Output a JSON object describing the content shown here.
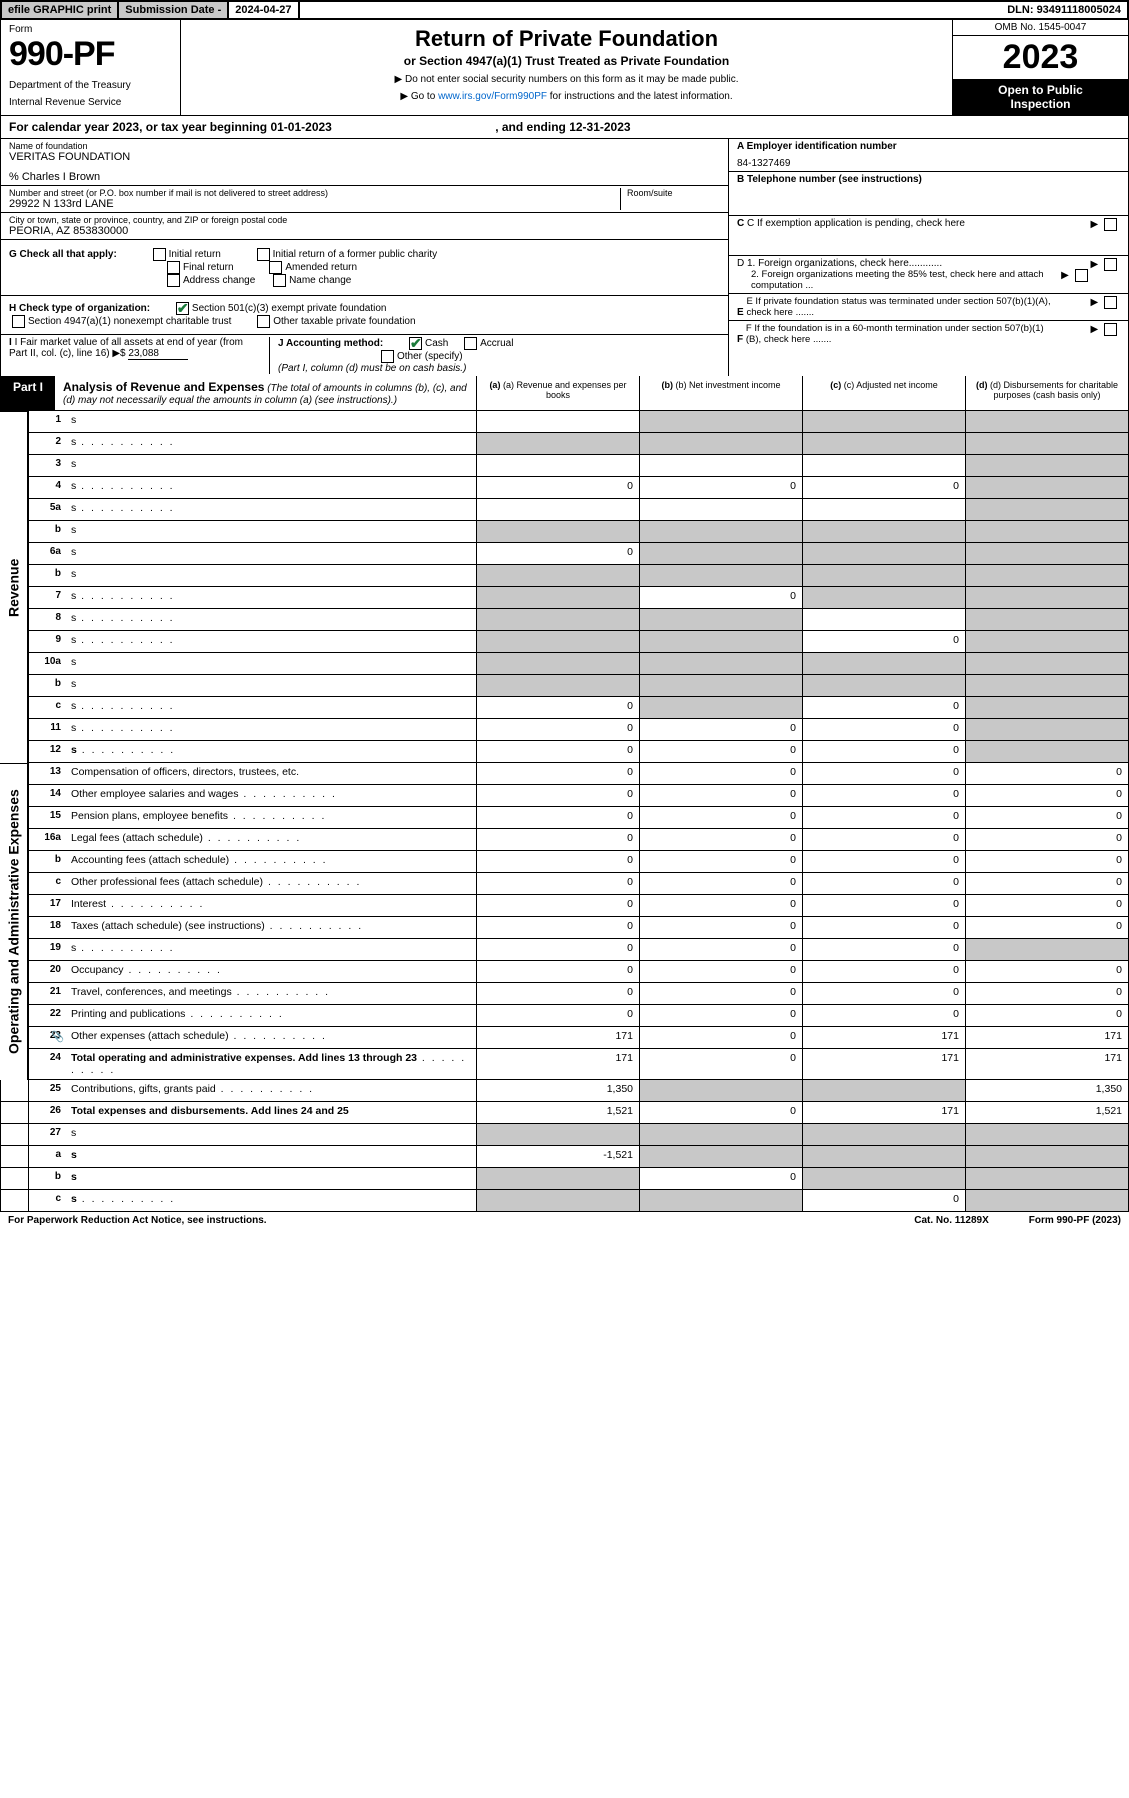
{
  "top": {
    "efile": "efile GRAPHIC print",
    "subdate_lbl": "Submission Date - ",
    "subdate_val": "2024-04-27",
    "dln_lbl": "DLN: ",
    "dln_val": "93491118005024"
  },
  "header": {
    "form_word": "Form",
    "form_num": "990-PF",
    "dept1": "Department of the Treasury",
    "dept2": "Internal Revenue Service",
    "title": "Return of Private Foundation",
    "subtitle": "or Section 4947(a)(1) Trust Treated as Private Foundation",
    "instr1": "▶ Do not enter social security numbers on this form as it may be made public.",
    "instr2_pre": "▶ Go to ",
    "instr2_link": "www.irs.gov/Form990PF",
    "instr2_post": " for instructions and the latest information.",
    "omb": "OMB No. 1545-0047",
    "year": "2023",
    "open_pub1": "Open to Public",
    "open_pub2": "Inspection"
  },
  "cal_year": {
    "pre": "For calendar year 2023, or tax year beginning ",
    "begin": "01-01-2023",
    "mid": " , and ending ",
    "end": "12-31-2023"
  },
  "info": {
    "name_lbl": "Name of foundation",
    "name_val": "VERITAS FOUNDATION",
    "care_of": "% Charles I Brown",
    "addr_lbl": "Number and street (or P.O. box number if mail is not delivered to street address)",
    "addr_val": "29922 N 133rd LANE",
    "room_lbl": "Room/suite",
    "city_lbl": "City or town, state or province, country, and ZIP or foreign postal code",
    "city_val": "PEORIA, AZ  853830000",
    "a_lbl": "A Employer identification number",
    "a_val": "84-1327469",
    "b_lbl": "B Telephone number (see instructions)",
    "c_lbl": "C If exemption application is pending, check here",
    "g_lbl": "G Check all that apply:",
    "g_opts": [
      "Initial return",
      "Initial return of a former public charity",
      "Final return",
      "Amended return",
      "Address change",
      "Name change"
    ],
    "d1_lbl": "D 1. Foreign organizations, check here............",
    "d2_lbl": "2. Foreign organizations meeting the 85% test, check here and attach computation ...",
    "h_lbl": "H Check type of organization:",
    "h_opt1": "Section 501(c)(3) exempt private foundation",
    "h_opt2": "Section 4947(a)(1) nonexempt charitable trust",
    "h_opt3": "Other taxable private foundation",
    "e_lbl": "E If private foundation status was terminated under section 507(b)(1)(A), check here .......",
    "i_lbl": "I Fair market value of all assets at end of year (from Part II, col. (c), line 16) ▶$ ",
    "i_val": "23,088",
    "j_lbl": "J Accounting method:",
    "j_cash": "Cash",
    "j_accrual": "Accrual",
    "j_other": "Other (specify)",
    "j_note": "(Part I, column (d) must be on cash basis.)",
    "f_lbl": "F If the foundation is in a 60-month termination under section 507(b)(1)(B), check here ......."
  },
  "part1": {
    "badge": "Part I",
    "title": "Analysis of Revenue and Expenses",
    "subtitle": " (The total of amounts in columns (b), (c), and (d) may not necessarily equal the amounts in column (a) (see instructions).)",
    "col_a": "(a) Revenue and expenses per books",
    "col_b": "(b) Net investment income",
    "col_c": "(c) Adjusted net income",
    "col_d": "(d) Disbursements for charitable purposes (cash basis only)",
    "side_rev": "Revenue",
    "side_exp": "Operating and Administrative Expenses"
  },
  "rows": [
    {
      "n": "1",
      "d": "s",
      "a": "",
      "b": "s",
      "c": "s"
    },
    {
      "n": "2",
      "d": "s",
      "dots": true,
      "a": "s",
      "b": "s",
      "c": "s"
    },
    {
      "n": "3",
      "d": "s",
      "a": "",
      "b": "",
      "c": ""
    },
    {
      "n": "4",
      "d": "s",
      "dots": true,
      "a": "0",
      "b": "0",
      "c": "0"
    },
    {
      "n": "5a",
      "d": "s",
      "dots": true,
      "a": "",
      "b": "",
      "c": ""
    },
    {
      "n": "b",
      "d": "s",
      "a": "s",
      "b": "s",
      "c": "s"
    },
    {
      "n": "6a",
      "d": "s",
      "a": "0",
      "b": "s",
      "c": "s"
    },
    {
      "n": "b",
      "d": "s",
      "a": "s",
      "b": "s",
      "c": "s"
    },
    {
      "n": "7",
      "d": "s",
      "dots": true,
      "a": "s",
      "b": "0",
      "c": "s"
    },
    {
      "n": "8",
      "d": "s",
      "dots": true,
      "a": "s",
      "b": "s",
      "c": ""
    },
    {
      "n": "9",
      "d": "s",
      "dots": true,
      "a": "s",
      "b": "s",
      "c": "0"
    },
    {
      "n": "10a",
      "d": "s",
      "a": "s",
      "b": "s",
      "c": "s"
    },
    {
      "n": "b",
      "d": "s",
      "a": "s",
      "b": "s",
      "c": "s"
    },
    {
      "n": "c",
      "d": "s",
      "dots": true,
      "a": "0",
      "b": "s",
      "c": "0"
    },
    {
      "n": "11",
      "d": "s",
      "dots": true,
      "a": "0",
      "b": "0",
      "c": "0"
    },
    {
      "n": "12",
      "d": "s",
      "bold": true,
      "dots": true,
      "a": "0",
      "b": "0",
      "c": "0"
    },
    {
      "n": "13",
      "d": "Compensation of officers, directors, trustees, etc.",
      "a": "0",
      "b": "0",
      "c": "0",
      "dd": "0"
    },
    {
      "n": "14",
      "d": "Other employee salaries and wages",
      "dots": true,
      "a": "0",
      "b": "0",
      "c": "0",
      "dd": "0"
    },
    {
      "n": "15",
      "d": "Pension plans, employee benefits",
      "dots": true,
      "a": "0",
      "b": "0",
      "c": "0",
      "dd": "0"
    },
    {
      "n": "16a",
      "d": "Legal fees (attach schedule)",
      "dots": true,
      "a": "0",
      "b": "0",
      "c": "0",
      "dd": "0"
    },
    {
      "n": "b",
      "d": "Accounting fees (attach schedule)",
      "dots": true,
      "a": "0",
      "b": "0",
      "c": "0",
      "dd": "0"
    },
    {
      "n": "c",
      "d": "Other professional fees (attach schedule)",
      "dots": true,
      "a": "0",
      "b": "0",
      "c": "0",
      "dd": "0"
    },
    {
      "n": "17",
      "d": "Interest",
      "dots": true,
      "a": "0",
      "b": "0",
      "c": "0",
      "dd": "0"
    },
    {
      "n": "18",
      "d": "Taxes (attach schedule) (see instructions)",
      "dots": true,
      "a": "0",
      "b": "0",
      "c": "0",
      "dd": "0"
    },
    {
      "n": "19",
      "d": "s",
      "dots": true,
      "a": "0",
      "b": "0",
      "c": "0"
    },
    {
      "n": "20",
      "d": "Occupancy",
      "dots": true,
      "a": "0",
      "b": "0",
      "c": "0",
      "dd": "0"
    },
    {
      "n": "21",
      "d": "Travel, conferences, and meetings",
      "dots": true,
      "a": "0",
      "b": "0",
      "c": "0",
      "dd": "0"
    },
    {
      "n": "22",
      "d": "Printing and publications",
      "dots": true,
      "a": "0",
      "b": "0",
      "c": "0",
      "dd": "0"
    },
    {
      "n": "23",
      "d": "Other expenses (attach schedule)",
      "dots": true,
      "a": "171",
      "b": "0",
      "c": "171",
      "dd": "171",
      "icon": true
    },
    {
      "n": "24",
      "d": "Total operating and administrative expenses. Add lines 13 through 23",
      "bold": true,
      "dots": true,
      "a": "171",
      "b": "0",
      "c": "171",
      "dd": "171"
    },
    {
      "n": "25",
      "d": "Contributions, gifts, grants paid",
      "dots": true,
      "a": "1,350",
      "b": "s",
      "c": "s",
      "dd": "1,350"
    },
    {
      "n": "26",
      "d": "Total expenses and disbursements. Add lines 24 and 25",
      "bold": true,
      "a": "1,521",
      "b": "0",
      "c": "171",
      "dd": "1,521"
    },
    {
      "n": "27",
      "d": "s",
      "a": "s",
      "b": "s",
      "c": "s"
    },
    {
      "n": "a",
      "d": "s",
      "bold": true,
      "a": "-1,521",
      "b": "s",
      "c": "s"
    },
    {
      "n": "b",
      "d": "s",
      "bold": true,
      "a": "s",
      "b": "0",
      "c": "s"
    },
    {
      "n": "c",
      "d": "s",
      "bold": true,
      "dots": true,
      "a": "s",
      "b": "s",
      "c": "0"
    }
  ],
  "footer": {
    "left": "For Paperwork Reduction Act Notice, see instructions.",
    "mid": "Cat. No. 11289X",
    "right": "Form 990-PF (2023)"
  }
}
